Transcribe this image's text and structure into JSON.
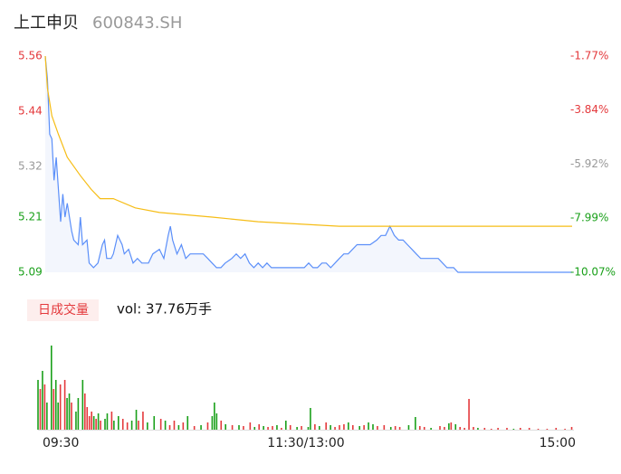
{
  "title": "上工申贝",
  "subtitle": "600843.SH",
  "chart_data": [
    {
      "type": "line",
      "xlim": [
        0,
        240
      ],
      "ylim": [
        5.09,
        5.56
      ],
      "yticks": [
        5.56,
        5.44,
        5.32,
        5.21,
        5.09
      ],
      "ytick_colors": [
        "#e4393c",
        "#e4393c",
        "#999999",
        "#1aa01a",
        "#1aa01a"
      ],
      "y2lim": [
        -10.07,
        -1.77
      ],
      "y2ticks": [
        {
          "value": -1.77,
          "label": "-1.77%"
        },
        {
          "value": -3.84,
          "label": "-3.84%"
        },
        {
          "value": -5.92,
          "label": "-5.92%"
        },
        {
          "value": -7.99,
          "label": "-7.99%"
        },
        {
          "value": -10.07,
          "label": "-10.07%"
        }
      ],
      "area_fill": "#f3f6fd",
      "series": [
        {
          "color": "#5b8ff9",
          "x": [
            0,
            1,
            2,
            3,
            4,
            5,
            7,
            8,
            9,
            10,
            12,
            13,
            15,
            16,
            17,
            19,
            20,
            22,
            24,
            26,
            27,
            28,
            30,
            31,
            33,
            35,
            36,
            38,
            40,
            42,
            44,
            45,
            47,
            49,
            52,
            54,
            56,
            57,
            58,
            60,
            62,
            64,
            66,
            68,
            70,
            72,
            74,
            76,
            78,
            80,
            82,
            85,
            87,
            89,
            91,
            93,
            95,
            97,
            99,
            101,
            103,
            105,
            107,
            109,
            111,
            113,
            115,
            118,
            120,
            122,
            124,
            126,
            128,
            130,
            132,
            134,
            136,
            138,
            140,
            142,
            144,
            146,
            148,
            151,
            153,
            155,
            157,
            159,
            161,
            163,
            165,
            167,
            169,
            171,
            173,
            175,
            177,
            179,
            181,
            183,
            186,
            188,
            240
          ],
          "values": [
            5.56,
            5.51,
            5.39,
            5.38,
            5.29,
            5.34,
            5.2,
            5.26,
            5.21,
            5.24,
            5.18,
            5.16,
            5.15,
            5.21,
            5.15,
            5.16,
            5.11,
            5.1,
            5.11,
            5.15,
            5.16,
            5.12,
            5.12,
            5.13,
            5.17,
            5.15,
            5.13,
            5.14,
            5.11,
            5.12,
            5.11,
            5.11,
            5.11,
            5.13,
            5.14,
            5.12,
            5.17,
            5.19,
            5.16,
            5.13,
            5.15,
            5.12,
            5.13,
            5.13,
            5.13,
            5.13,
            5.12,
            5.11,
            5.1,
            5.1,
            5.11,
            5.12,
            5.13,
            5.12,
            5.13,
            5.11,
            5.1,
            5.11,
            5.1,
            5.11,
            5.1,
            5.1,
            5.1,
            5.1,
            5.1,
            5.1,
            5.1,
            5.1,
            5.11,
            5.1,
            5.1,
            5.11,
            5.11,
            5.1,
            5.11,
            5.12,
            5.13,
            5.13,
            5.14,
            5.15,
            5.15,
            5.15,
            5.15,
            5.16,
            5.17,
            5.17,
            5.19,
            5.17,
            5.16,
            5.16,
            5.15,
            5.14,
            5.13,
            5.12,
            5.12,
            5.12,
            5.12,
            5.12,
            5.11,
            5.1,
            5.1,
            5.09,
            5.09
          ]
        },
        {
          "color": "#f6bd16",
          "x": [
            0,
            1,
            3,
            6,
            10,
            16,
            21,
            25,
            31,
            41,
            52,
            76,
            97,
            134,
            240
          ],
          "values": [
            5.56,
            5.49,
            5.43,
            5.39,
            5.34,
            5.3,
            5.27,
            5.25,
            5.25,
            5.23,
            5.22,
            5.21,
            5.2,
            5.19,
            5.19
          ]
        }
      ]
    },
    {
      "type": "bar",
      "label": "日成交量",
      "annotation": "vol: 37.76万手",
      "xlim": [
        0,
        240
      ],
      "ylim": [
        0,
        100
      ],
      "xticks": [
        {
          "value": 0,
          "label": "09:30"
        },
        {
          "value": 120,
          "label": "11:30/13:00"
        },
        {
          "value": 240,
          "label": "15:00"
        }
      ],
      "series": [
        {
          "color": "#e4393c",
          "x": [
            1,
            3,
            7,
            10,
            12,
            15,
            21,
            22,
            23,
            24,
            26,
            28,
            33,
            38,
            40,
            45,
            47,
            55,
            59,
            61,
            65,
            70,
            76,
            82,
            87,
            92,
            95,
            99,
            103,
            105,
            109,
            113,
            118,
            124,
            129,
            133,
            135,
            137,
            141,
            146,
            152,
            155,
            160,
            162,
            171,
            173,
            180,
            182,
            185,
            189,
            191,
            193,
            195,
            200,
            203,
            206,
            210,
            216,
            220,
            224,
            228,
            232,
            236,
            239
          ],
          "values": [
            45,
            50,
            45,
            50,
            55,
            30,
            40,
            25,
            15,
            20,
            12,
            10,
            20,
            12,
            8,
            10,
            20,
            12,
            5,
            10,
            8,
            4,
            8,
            10,
            5,
            4,
            8,
            6,
            3,
            4,
            2,
            5,
            4,
            6,
            8,
            3,
            5,
            6,
            5,
            5,
            4,
            5,
            4,
            3,
            4,
            3,
            4,
            3,
            8,
            3,
            2,
            34,
            3,
            2,
            1,
            2,
            2,
            2,
            2,
            1,
            1,
            2,
            1,
            3
          ]
        },
        {
          "color": "#1aa01a",
          "x": [
            0,
            2,
            4,
            6,
            8,
            9,
            13,
            14,
            17,
            18,
            20,
            25,
            27,
            30,
            31,
            34,
            36,
            42,
            44,
            49,
            52,
            57,
            63,
            67,
            73,
            78,
            79,
            80,
            84,
            90,
            97,
            101,
            107,
            111,
            116,
            121,
            122,
            126,
            131,
            139,
            144,
            148,
            150,
            158,
            166,
            169,
            176,
            184,
            187,
            197,
            213
          ],
          "values": [
            55,
            65,
            30,
            93,
            55,
            30,
            35,
            40,
            20,
            35,
            55,
            15,
            18,
            12,
            18,
            10,
            15,
            10,
            22,
            8,
            15,
            10,
            5,
            15,
            5,
            15,
            30,
            18,
            6,
            5,
            3,
            4,
            5,
            10,
            3,
            3,
            24,
            4,
            5,
            8,
            4,
            8,
            6,
            3,
            5,
            14,
            2,
            7,
            6,
            2,
            1
          ]
        }
      ]
    }
  ]
}
